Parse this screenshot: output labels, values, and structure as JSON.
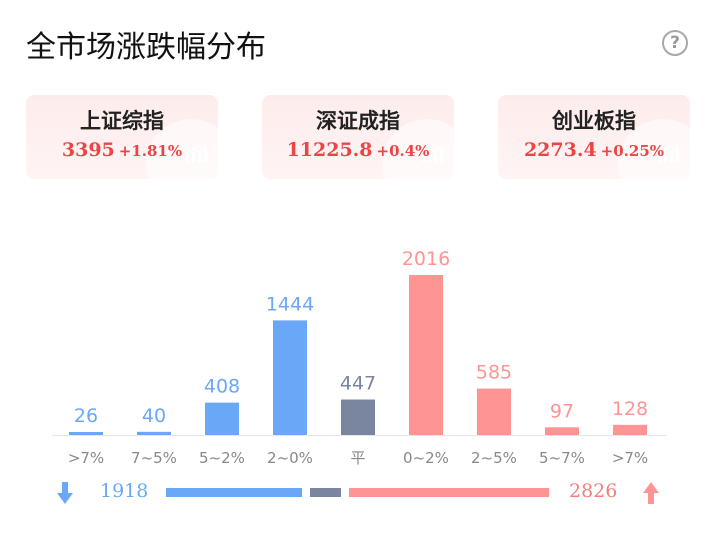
{
  "title": "全市场涨跌幅分布",
  "help_icon": "help-question-icon",
  "indices": [
    {
      "name": "上证综指",
      "value": "3395",
      "change": "+1.81%"
    },
    {
      "name": "深证成指",
      "value": "11225.8",
      "change": "+0.4%"
    },
    {
      "name": "创业板指",
      "value": "2273.4",
      "change": "+0.25%"
    }
  ],
  "colors": {
    "down": "#6aa8f7",
    "flat": "#7a86a0",
    "up": "#fe9494",
    "index_text": "#ee4444",
    "axis_label": "#888888"
  },
  "chart_data": {
    "type": "bar",
    "title": "",
    "xlabel": "",
    "ylabel": "",
    "categories": [
      ">7%",
      "7~5%",
      "5~2%",
      "2~0%",
      "平",
      "0~2%",
      "2~5%",
      "5~7%",
      ">7%"
    ],
    "values": [
      26,
      40,
      408,
      1444,
      447,
      2016,
      585,
      97,
      128
    ],
    "groups": [
      "down",
      "down",
      "down",
      "down",
      "flat",
      "up",
      "up",
      "up",
      "up"
    ],
    "ylim": [
      0,
      2016
    ],
    "grid": false,
    "legend": "none"
  },
  "summary": {
    "down_count": "1918",
    "up_count": "2826",
    "down_icon": "arrow-down-icon",
    "up_icon": "arrow-up-icon"
  }
}
